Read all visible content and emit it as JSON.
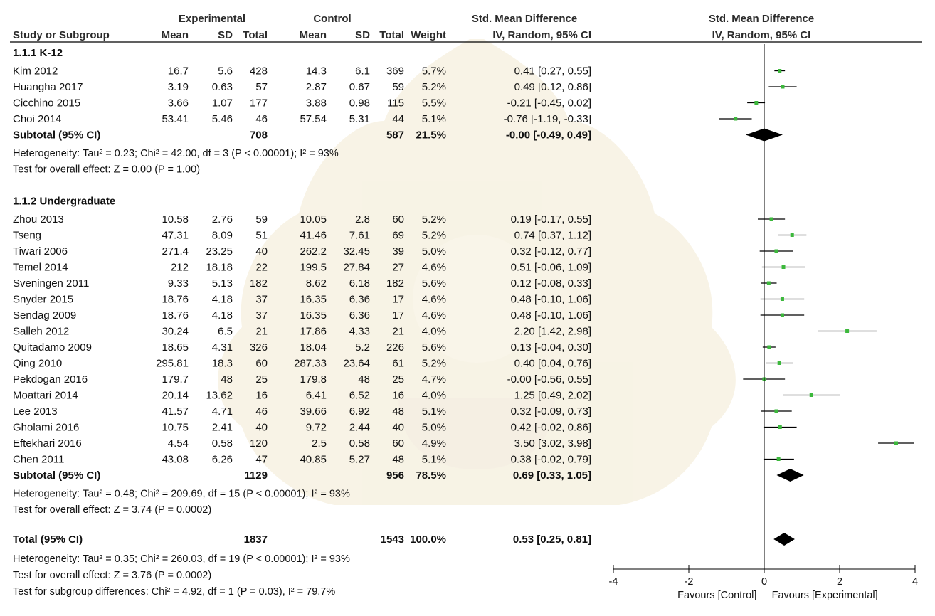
{
  "header": {
    "experimental": "Experimental",
    "control": "Control",
    "smd_title_left": "Std. Mean Difference",
    "smd_method_left": "IV, Random, 95% CI",
    "smd_title_right": "Std. Mean Difference",
    "smd_method_right": "IV, Random, 95% CI",
    "columns": {
      "study": "Study or Subgroup",
      "mean_e": "Mean",
      "sd_e": "SD",
      "total_e": "Total",
      "mean_c": "Mean",
      "sd_c": "SD",
      "total_c": "Total",
      "weight": "Weight"
    }
  },
  "chart_data": {
    "type": "forest",
    "axis": {
      "range": [
        -4,
        4
      ],
      "ticks": [
        "-4",
        "-2",
        "0",
        "2",
        "4"
      ],
      "left_label": "Favours [Control]",
      "right_label": "Favours [Experimental]"
    },
    "subgroups": [
      {
        "name": "1.1.1 K-12",
        "studies": [
          {
            "study": "Kim 2012",
            "mean_e": "16.7",
            "sd_e": "5.6",
            "total_e": "428",
            "mean_c": "14.3",
            "sd_c": "6.1",
            "total_c": "369",
            "weight": "5.7%",
            "ci_text": "0.41 [0.27, 0.55]",
            "est": 0.41,
            "lo": 0.27,
            "hi": 0.55
          },
          {
            "study": "Huangha 2017",
            "mean_e": "3.19",
            "sd_e": "0.63",
            "total_e": "57",
            "mean_c": "2.87",
            "sd_c": "0.67",
            "total_c": "59",
            "weight": "5.2%",
            "ci_text": "0.49 [0.12, 0.86]",
            "est": 0.49,
            "lo": 0.12,
            "hi": 0.86
          },
          {
            "study": "Cicchino 2015",
            "mean_e": "3.66",
            "sd_e": "1.07",
            "total_e": "177",
            "mean_c": "3.88",
            "sd_c": "0.98",
            "total_c": "115",
            "weight": "5.5%",
            "ci_text": "-0.21 [-0.45, 0.02]",
            "est": -0.21,
            "lo": -0.45,
            "hi": 0.02
          },
          {
            "study": "Choi 2014",
            "mean_e": "53.41",
            "sd_e": "5.46",
            "total_e": "46",
            "mean_c": "57.54",
            "sd_c": "5.31",
            "total_c": "44",
            "weight": "5.1%",
            "ci_text": "-0.76 [-1.19, -0.33]",
            "est": -0.76,
            "lo": -1.19,
            "hi": -0.33
          }
        ],
        "subtotal": {
          "label": "Subtotal (95% CI)",
          "total_e": "708",
          "total_c": "587",
          "weight": "21.5%",
          "ci_text": "-0.00 [-0.49, 0.49]",
          "est": 0.0,
          "lo": -0.49,
          "hi": 0.49
        },
        "heterogeneity": "Heterogeneity: Tau² = 0.23; Chi² = 42.00, df = 3 (P < 0.00001); I² = 93%",
        "overall": "Test for overall effect: Z = 0.00 (P = 1.00)"
      },
      {
        "name": "1.1.2 Undergraduate",
        "studies": [
          {
            "study": "Zhou 2013",
            "mean_e": "10.58",
            "sd_e": "2.76",
            "total_e": "59",
            "mean_c": "10.05",
            "sd_c": "2.8",
            "total_c": "60",
            "weight": "5.2%",
            "ci_text": "0.19 [-0.17, 0.55]",
            "est": 0.19,
            "lo": -0.17,
            "hi": 0.55
          },
          {
            "study": "Tseng",
            "mean_e": "47.31",
            "sd_e": "8.09",
            "total_e": "51",
            "mean_c": "41.46",
            "sd_c": "7.61",
            "total_c": "69",
            "weight": "5.2%",
            "ci_text": "0.74 [0.37, 1.12]",
            "est": 0.74,
            "lo": 0.37,
            "hi": 1.12
          },
          {
            "study": "Tiwari 2006",
            "mean_e": "271.4",
            "sd_e": "23.25",
            "total_e": "40",
            "mean_c": "262.2",
            "sd_c": "32.45",
            "total_c": "39",
            "weight": "5.0%",
            "ci_text": "0.32 [-0.12, 0.77]",
            "est": 0.32,
            "lo": -0.12,
            "hi": 0.77
          },
          {
            "study": "Temel 2014",
            "mean_e": "212",
            "sd_e": "18.18",
            "total_e": "22",
            "mean_c": "199.5",
            "sd_c": "27.84",
            "total_c": "27",
            "weight": "4.6%",
            "ci_text": "0.51 [-0.06, 1.09]",
            "est": 0.51,
            "lo": -0.06,
            "hi": 1.09
          },
          {
            "study": "Sveningen 2011",
            "mean_e": "9.33",
            "sd_e": "5.13",
            "total_e": "182",
            "mean_c": "8.62",
            "sd_c": "6.18",
            "total_c": "182",
            "weight": "5.6%",
            "ci_text": "0.12 [-0.08, 0.33]",
            "est": 0.12,
            "lo": -0.08,
            "hi": 0.33
          },
          {
            "study": "Snyder 2015",
            "mean_e": "18.76",
            "sd_e": "4.18",
            "total_e": "37",
            "mean_c": "16.35",
            "sd_c": "6.36",
            "total_c": "17",
            "weight": "4.6%",
            "ci_text": "0.48 [-0.10, 1.06]",
            "est": 0.48,
            "lo": -0.1,
            "hi": 1.06
          },
          {
            "study": "Sendag 2009",
            "mean_e": "18.76",
            "sd_e": "4.18",
            "total_e": "37",
            "mean_c": "16.35",
            "sd_c": "6.36",
            "total_c": "17",
            "weight": "4.6%",
            "ci_text": "0.48 [-0.10, 1.06]",
            "est": 0.48,
            "lo": -0.1,
            "hi": 1.06
          },
          {
            "study": "Salleh 2012",
            "mean_e": "30.24",
            "sd_e": "6.5",
            "total_e": "21",
            "mean_c": "17.86",
            "sd_c": "4.33",
            "total_c": "21",
            "weight": "4.0%",
            "ci_text": "2.20 [1.42, 2.98]",
            "est": 2.2,
            "lo": 1.42,
            "hi": 2.98
          },
          {
            "study": "Quitadamo 2009",
            "mean_e": "18.65",
            "sd_e": "4.31",
            "total_e": "326",
            "mean_c": "18.04",
            "sd_c": "5.2",
            "total_c": "226",
            "weight": "5.6%",
            "ci_text": "0.13 [-0.04, 0.30]",
            "est": 0.13,
            "lo": -0.04,
            "hi": 0.3
          },
          {
            "study": "Qing 2010",
            "mean_e": "295.81",
            "sd_e": "18.3",
            "total_e": "60",
            "mean_c": "287.33",
            "sd_c": "23.64",
            "total_c": "61",
            "weight": "5.2%",
            "ci_text": "0.40 [0.04, 0.76]",
            "est": 0.4,
            "lo": 0.04,
            "hi": 0.76
          },
          {
            "study": "Pekdogan 2016",
            "mean_e": "179.7",
            "sd_e": "48",
            "total_e": "25",
            "mean_c": "179.8",
            "sd_c": "48",
            "total_c": "25",
            "weight": "4.7%",
            "ci_text": "-0.00 [-0.56, 0.55]",
            "est": 0.0,
            "lo": -0.56,
            "hi": 0.55
          },
          {
            "study": "Moattari 2014",
            "mean_e": "20.14",
            "sd_e": "13.62",
            "total_e": "16",
            "mean_c": "6.41",
            "sd_c": "6.52",
            "total_c": "16",
            "weight": "4.0%",
            "ci_text": "1.25 [0.49, 2.02]",
            "est": 1.25,
            "lo": 0.49,
            "hi": 2.02
          },
          {
            "study": "Lee 2013",
            "mean_e": "41.57",
            "sd_e": "4.71",
            "total_e": "46",
            "mean_c": "39.66",
            "sd_c": "6.92",
            "total_c": "48",
            "weight": "5.1%",
            "ci_text": "0.32 [-0.09, 0.73]",
            "est": 0.32,
            "lo": -0.09,
            "hi": 0.73
          },
          {
            "study": "Gholami 2016",
            "mean_e": "10.75",
            "sd_e": "2.41",
            "total_e": "40",
            "mean_c": "9.72",
            "sd_c": "2.44",
            "total_c": "40",
            "weight": "5.0%",
            "ci_text": "0.42 [-0.02, 0.86]",
            "est": 0.42,
            "lo": -0.02,
            "hi": 0.86
          },
          {
            "study": "Eftekhari 2016",
            "mean_e": "4.54",
            "sd_e": "0.58",
            "total_e": "120",
            "mean_c": "2.5",
            "sd_c": "0.58",
            "total_c": "60",
            "weight": "4.9%",
            "ci_text": "3.50 [3.02, 3.98]",
            "est": 3.5,
            "lo": 3.02,
            "hi": 3.98
          },
          {
            "study": "Chen 2011",
            "mean_e": "43.08",
            "sd_e": "6.26",
            "total_e": "47",
            "mean_c": "40.85",
            "sd_c": "5.27",
            "total_c": "48",
            "weight": "5.1%",
            "ci_text": "0.38 [-0.02, 0.79]",
            "est": 0.38,
            "lo": -0.02,
            "hi": 0.79
          }
        ],
        "subtotal": {
          "label": "Subtotal (95% CI)",
          "total_e": "1129",
          "total_c": "956",
          "weight": "78.5%",
          "ci_text": "0.69 [0.33, 1.05]",
          "est": 0.69,
          "lo": 0.33,
          "hi": 1.05
        },
        "heterogeneity": "Heterogeneity: Tau² = 0.48; Chi² = 209.69, df = 15 (P < 0.00001); I² = 93%",
        "overall": "Test for overall effect: Z = 3.74 (P = 0.0002)"
      }
    ],
    "total": {
      "label": "Total (95% CI)",
      "total_e": "1837",
      "total_c": "1543",
      "weight": "100.0%",
      "ci_text": "0.53 [0.25, 0.81]",
      "est": 0.53,
      "lo": 0.25,
      "hi": 0.81
    },
    "total_heterogeneity": "Heterogeneity: Tau² = 0.35; Chi² = 260.03, df = 19 (P < 0.00001); I² = 93%",
    "total_overall": "Test for overall effect: Z = 3.76 (P = 0.0002)",
    "subgroup_diff": "Test for subgroup differences: Chi² = 4.92, df = 1 (P = 0.03), I² = 79.7%"
  },
  "colors": {
    "marker": "#3cb83c",
    "line": "#000000",
    "header": "#2b2b2b"
  }
}
